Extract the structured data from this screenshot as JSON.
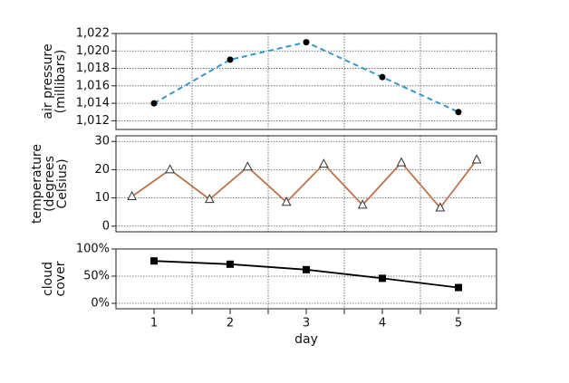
{
  "chart_data": [
    {
      "type": "line",
      "ylabel": [
        "air pressure",
        "(millibars)"
      ],
      "xlim": [
        0.5,
        5.5
      ],
      "xminorticks": [
        1.5,
        2.5,
        3.5,
        4.5
      ],
      "ylim": [
        1011,
        1022
      ],
      "yticks": [
        {
          "value": 1012,
          "label": "1,012"
        },
        {
          "value": 1014,
          "label": "1,014"
        },
        {
          "value": 1016,
          "label": "1,016"
        },
        {
          "value": 1018,
          "label": "1,018"
        },
        {
          "value": 1020,
          "label": "1,020"
        },
        {
          "value": 1022,
          "label": "1,022"
        }
      ],
      "grid": true,
      "series": [
        {
          "color": "#3399cc",
          "marker_color": "#000000",
          "linestyle": "dashed",
          "marker": "circle",
          "x": [
            1,
            2,
            3,
            4,
            5
          ],
          "values": [
            1014,
            1019,
            1021,
            1017,
            1013
          ]
        }
      ]
    },
    {
      "type": "line",
      "ylabel": [
        "temperature",
        "(degrees",
        "Celsius)"
      ],
      "xlim": [
        0.5,
        5.5
      ],
      "xminorticks": [
        1.5,
        2.5,
        3.5,
        4.5
      ],
      "ylim": [
        -2,
        32
      ],
      "yticks": [
        0,
        10,
        20,
        30
      ],
      "grid": true,
      "series": [
        {
          "color": "#c0714a",
          "marker_color": "#333333",
          "linestyle": "solid",
          "marker": "triangle",
          "x": [
            0.71,
            1.21,
            1.73,
            2.23,
            2.74,
            3.23,
            3.74,
            4.25,
            4.76,
            5.24
          ],
          "values": [
            10.5,
            20,
            9.5,
            21,
            8.5,
            22,
            7.5,
            22.5,
            6.5,
            23.5
          ]
        }
      ]
    },
    {
      "type": "line",
      "ylabel": [
        "cloud",
        "cover"
      ],
      "xlabel": "day",
      "xlim": [
        0.5,
        5.5
      ],
      "xticks": [
        1,
        2,
        3,
        4,
        5
      ],
      "xminorticks": [
        1.5,
        2.5,
        3.5,
        4.5
      ],
      "ylim": [
        -10,
        100
      ],
      "yticks": [
        {
          "value": 0,
          "label": "0%"
        },
        {
          "value": 50,
          "label": "50%"
        },
        {
          "value": 100,
          "label": "100%"
        }
      ],
      "grid": true,
      "series": [
        {
          "color": "#000000",
          "marker_color": "#000000",
          "linestyle": "solid",
          "marker": "square",
          "x": [
            1,
            2,
            3,
            4,
            5
          ],
          "values": [
            78,
            72,
            62,
            46,
            29
          ]
        }
      ]
    }
  ]
}
